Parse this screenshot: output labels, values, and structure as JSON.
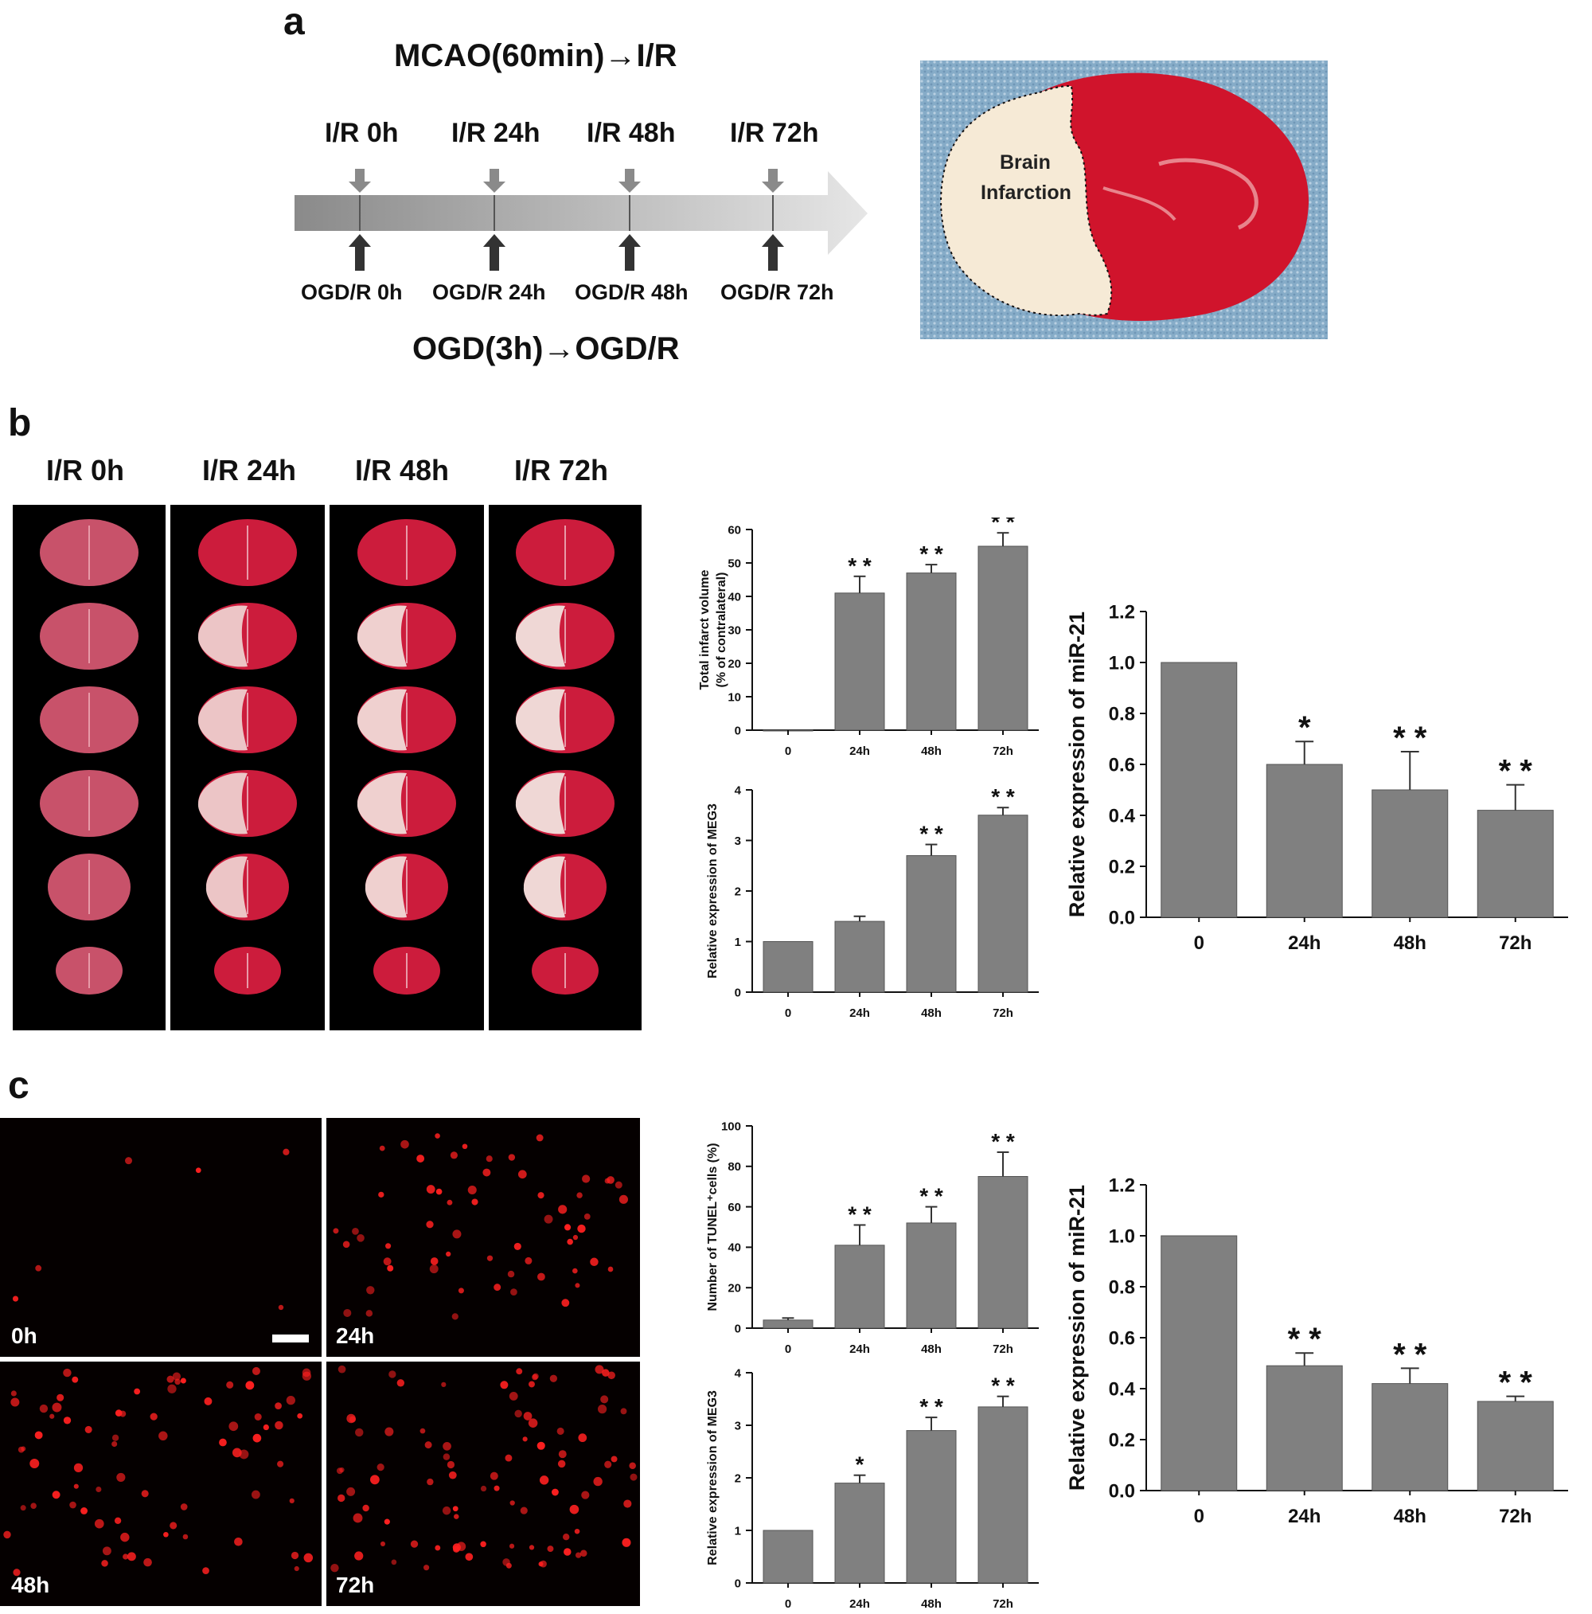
{
  "panels": {
    "a": "a",
    "b": "b",
    "c": "c"
  },
  "timeline": {
    "top_title": "MCAO(60min)→I/R",
    "bottom_title": "OGD(3h)→OGD/R",
    "top_labels": [
      "I/R 0h",
      "I/R 24h",
      "I/R 48h",
      "I/R 72h"
    ],
    "bottom_labels": [
      "OGD/R 0h",
      "OGD/R 24h",
      "OGD/R 48h",
      "OGD/R 72h"
    ]
  },
  "brain_photo": {
    "label_line1": "Brain",
    "label_line2": "Infarction",
    "colors": {
      "tissue": "#d0142c",
      "infarct": "#f6ead6",
      "background": "#7fa8c6"
    }
  },
  "ttc_columns": [
    "I/R 0h",
    "I/R 24h",
    "I/R 48h",
    "I/R 72h"
  ],
  "tunel_labels": [
    "0h",
    "24h",
    "48h",
    "72h"
  ],
  "colors": {
    "bar": "#808080",
    "tunel": "#ff2020"
  },
  "chart_data": [
    {
      "id": "b1",
      "type": "bar",
      "categories": [
        "0",
        "24h",
        "48h",
        "72h"
      ],
      "values": [
        0,
        41,
        47,
        55
      ],
      "errors": [
        0,
        5,
        2.5,
        4
      ],
      "significance": [
        "",
        "**",
        "**",
        "**"
      ],
      "ylabel_line1": "Total infarct volume",
      "ylabel_line2": "(% of contralateral)",
      "ylim": [
        0,
        60
      ],
      "yticks": [
        "0",
        "10",
        "20",
        "30",
        "40",
        "50",
        "60"
      ]
    },
    {
      "id": "b2",
      "type": "bar",
      "categories": [
        "0",
        "24h",
        "48h",
        "72h"
      ],
      "values": [
        1.0,
        1.4,
        2.7,
        3.5
      ],
      "errors": [
        0,
        0.1,
        0.22,
        0.15
      ],
      "significance": [
        "",
        "",
        "**",
        "**"
      ],
      "ylabel_line1": "Relative expression of MEG3",
      "ylim": [
        0,
        4
      ],
      "yticks": [
        "0",
        "1",
        "2",
        "3",
        "4"
      ]
    },
    {
      "id": "b3",
      "type": "bar",
      "categories": [
        "0",
        "24h",
        "48h",
        "72h"
      ],
      "values": [
        1.0,
        0.6,
        0.5,
        0.42
      ],
      "errors": [
        0,
        0.09,
        0.15,
        0.1
      ],
      "significance": [
        "",
        "*",
        "**",
        "**"
      ],
      "ylabel_line1": "Relative expression of miR-21",
      "ylim": [
        0,
        1.2
      ],
      "yticks": [
        "0.0",
        "0.2",
        "0.4",
        "0.6",
        "0.8",
        "1.0",
        "1.2"
      ]
    },
    {
      "id": "c1",
      "type": "bar",
      "categories": [
        "0",
        "24h",
        "48h",
        "72h"
      ],
      "values": [
        4,
        41,
        52,
        75
      ],
      "errors": [
        1,
        10,
        8,
        12
      ],
      "significance": [
        "",
        "**",
        "**",
        "**"
      ],
      "ylabel_line1": "Number of TUNEL⁺cells (%)",
      "ylim": [
        0,
        100
      ],
      "yticks": [
        "0",
        "20",
        "40",
        "60",
        "80",
        "100"
      ]
    },
    {
      "id": "c2",
      "type": "bar",
      "categories": [
        "0",
        "24h",
        "48h",
        "72h"
      ],
      "values": [
        1.0,
        1.9,
        2.9,
        3.35
      ],
      "errors": [
        0,
        0.15,
        0.25,
        0.2
      ],
      "significance": [
        "",
        "*",
        "**",
        "**"
      ],
      "ylabel_line1": "Relative expression of MEG3",
      "ylim": [
        0,
        4
      ],
      "yticks": [
        "0",
        "1",
        "2",
        "3",
        "4"
      ]
    },
    {
      "id": "c3",
      "type": "bar",
      "categories": [
        "0",
        "24h",
        "48h",
        "72h"
      ],
      "values": [
        1.0,
        0.49,
        0.42,
        0.35
      ],
      "errors": [
        0,
        0.05,
        0.06,
        0.02
      ],
      "significance": [
        "",
        "**",
        "**",
        "**"
      ],
      "ylabel_line1": "Relative expression of miR-21",
      "ylim": [
        0,
        1.2
      ],
      "yticks": [
        "0.0",
        "0.2",
        "0.4",
        "0.6",
        "0.8",
        "1.0",
        "1.2"
      ]
    }
  ]
}
